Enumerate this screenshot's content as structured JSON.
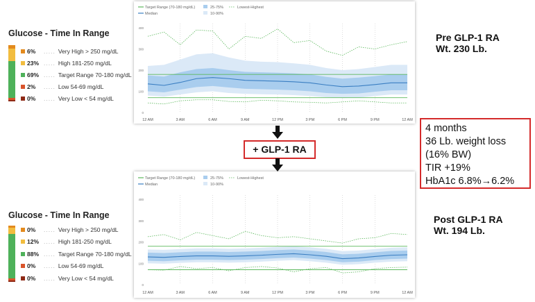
{
  "tir": [
    {
      "title": "Glucose - Time In Range",
      "rows": [
        {
          "pct": "6%",
          "label": "Very High > 250 mg/dL",
          "color": "#e38a1e",
          "value": 6
        },
        {
          "pct": "23%",
          "label": "High 181-250 mg/dL",
          "color": "#f2bd3f",
          "value": 23
        },
        {
          "pct": "69%",
          "label": "Target Range 70-180 mg/dL",
          "color": "#4eb15a",
          "value": 69
        },
        {
          "pct": "2%",
          "label": "Low 54-69 mg/dL",
          "color": "#d9542b",
          "value": 2
        },
        {
          "pct": "0%",
          "label": "Very Low < 54 mg/dL",
          "color": "#8e2a16",
          "value": 0
        }
      ]
    },
    {
      "title": "Glucose - Time In Range",
      "rows": [
        {
          "pct": "0%",
          "label": "Very High > 250 mg/dL",
          "color": "#e38a1e",
          "value": 0
        },
        {
          "pct": "12%",
          "label": "High 181-250 mg/dL",
          "color": "#f2bd3f",
          "value": 12
        },
        {
          "pct": "88%",
          "label": "Target Range 70-180 mg/dL",
          "color": "#4eb15a",
          "value": 88
        },
        {
          "pct": "0%",
          "label": "Low 54-69 mg/dL",
          "color": "#d9542b",
          "value": 0
        },
        {
          "pct": "0%",
          "label": "Very Low < 54 mg/dL",
          "color": "#8e2a16",
          "value": 0
        }
      ]
    }
  ],
  "labels": {
    "pre_title": "Pre GLP-1 RA",
    "pre_weight": "Wt. 230 Lb.",
    "post_title": "Post GLP-1 RA",
    "post_weight": "Wt. 194 Lb.",
    "intervention": "+ GLP-1 RA"
  },
  "outcomes": {
    "lines": [
      "4 months",
      "36 Lb. weight loss",
      "(16% BW)",
      "TIR +19%",
      "HbA1c 6.8%→6.2%"
    ]
  },
  "legend": {
    "target": "Target Range (70-180 mg/dL)",
    "median": "Median",
    "iqr": "25-75%",
    "p1090": "10-90%",
    "minmax": "Lowest-Highest"
  },
  "colors": {
    "target_line": "#5cb85c",
    "median": "#3a7ec2",
    "iqr_band": "#a9cdee",
    "outer_band": "#dbe9f7",
    "minmax": "#5cb85c",
    "red_box": "#d42a2a"
  },
  "chart_data": [
    {
      "type": "area",
      "yticks": [
        0,
        100,
        200,
        300,
        400
      ],
      "ylim": [
        0,
        420
      ],
      "target_range": [
        70,
        180
      ],
      "xticks": [
        "12 AM",
        "3 AM",
        "6 AM",
        "9 AM",
        "12 PM",
        "3 PM",
        "6 PM",
        "9 PM",
        "12 AM"
      ],
      "x_hours": [
        0,
        1.5,
        3,
        4.5,
        6,
        7.5,
        9,
        10.5,
        12,
        13.5,
        15,
        16.5,
        18,
        19.5,
        21,
        22.5,
        24
      ],
      "series": [
        {
          "name": "Median",
          "values": [
            135,
            128,
            142,
            160,
            165,
            160,
            152,
            150,
            148,
            145,
            140,
            130,
            122,
            125,
            132,
            140,
            140
          ]
        },
        {
          "name": "25-75%",
          "low": [
            100,
            95,
            108,
            120,
            125,
            118,
            112,
            110,
            108,
            105,
            100,
            92,
            88,
            90,
            98,
            105,
            105
          ],
          "high": [
            175,
            170,
            190,
            205,
            210,
            200,
            192,
            190,
            188,
            185,
            180,
            168,
            160,
            165,
            172,
            180,
            180
          ]
        },
        {
          "name": "10-90%",
          "low": [
            80,
            75,
            85,
            95,
            100,
            92,
            88,
            86,
            85,
            82,
            78,
            72,
            68,
            70,
            78,
            85,
            85
          ],
          "high": [
            220,
            225,
            250,
            275,
            280,
            260,
            245,
            240,
            238,
            232,
            225,
            210,
            200,
            205,
            215,
            225,
            225
          ]
        },
        {
          "name": "Lowest-Highest",
          "low": [
            45,
            40,
            55,
            60,
            60,
            52,
            50,
            58,
            55,
            50,
            48,
            45,
            50,
            55,
            50,
            45,
            45
          ],
          "high": [
            360,
            380,
            320,
            390,
            385,
            300,
            360,
            350,
            395,
            330,
            340,
            290,
            270,
            310,
            300,
            320,
            335
          ]
        }
      ]
    },
    {
      "type": "area",
      "yticks": [
        0,
        100,
        200,
        300,
        400
      ],
      "ylim": [
        0,
        420
      ],
      "target_range": [
        70,
        180
      ],
      "xticks": [
        "12 AM",
        "3 AM",
        "6 AM",
        "9 AM",
        "12 PM",
        "3 PM",
        "6 PM",
        "9 PM",
        "12 AM"
      ],
      "x_hours": [
        0,
        1.5,
        3,
        4.5,
        6,
        7.5,
        9,
        10.5,
        12,
        13.5,
        15,
        16.5,
        18,
        19.5,
        21,
        22.5,
        24
      ],
      "series": [
        {
          "name": "Median",
          "values": [
            130,
            128,
            132,
            135,
            135,
            133,
            135,
            138,
            142,
            145,
            140,
            133,
            122,
            125,
            132,
            138,
            140
          ]
        },
        {
          "name": "25-75%",
          "low": [
            112,
            110,
            114,
            117,
            117,
            115,
            117,
            120,
            124,
            127,
            122,
            115,
            105,
            108,
            115,
            120,
            122
          ],
          "high": [
            150,
            148,
            152,
            155,
            155,
            153,
            155,
            158,
            162,
            165,
            160,
            153,
            142,
            145,
            152,
            158,
            160
          ]
        },
        {
          "name": "10-90%",
          "low": [
            100,
            98,
            102,
            105,
            105,
            103,
            105,
            108,
            112,
            115,
            110,
            103,
            93,
            96,
            103,
            108,
            110
          ],
          "high": [
            165,
            163,
            167,
            170,
            170,
            168,
            170,
            173,
            177,
            180,
            175,
            168,
            157,
            160,
            167,
            173,
            175
          ]
        },
        {
          "name": "Lowest-Highest",
          "low": [
            70,
            68,
            85,
            75,
            80,
            65,
            80,
            85,
            78,
            60,
            75,
            80,
            55,
            60,
            75,
            80,
            82
          ],
          "high": [
            225,
            235,
            210,
            245,
            230,
            215,
            250,
            230,
            220,
            225,
            215,
            205,
            195,
            215,
            220,
            240,
            235
          ]
        }
      ]
    }
  ]
}
